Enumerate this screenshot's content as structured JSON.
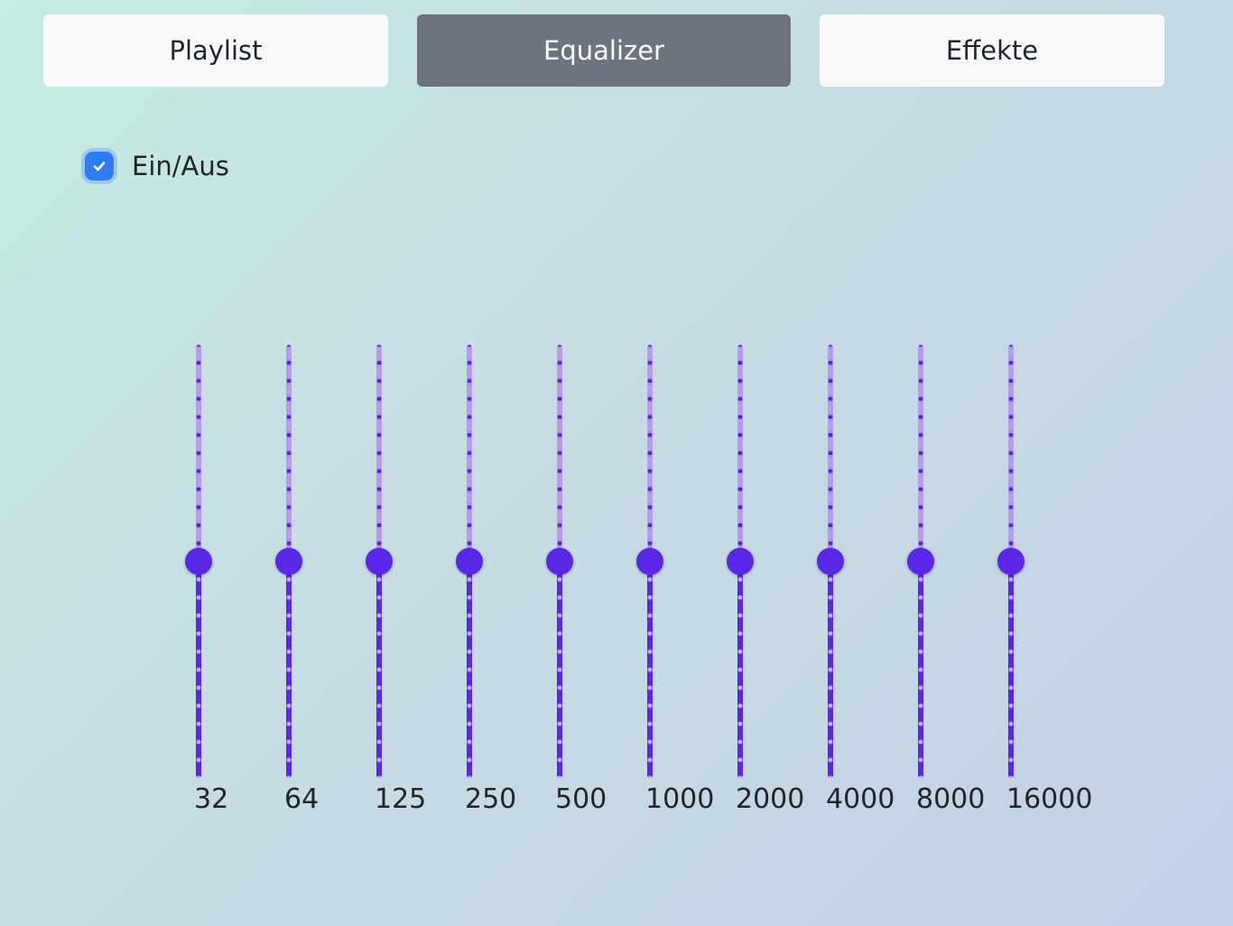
{
  "tabs": [
    {
      "label": "Playlist",
      "active": false
    },
    {
      "label": "Equalizer",
      "active": true
    },
    {
      "label": "Effekte",
      "active": false
    }
  ],
  "equalizer": {
    "enabled": true,
    "toggle_label": "Ein/Aus",
    "range": {
      "min": -12,
      "max": 12
    },
    "bands": [
      {
        "label": "32",
        "value": 0
      },
      {
        "label": "64",
        "value": 0
      },
      {
        "label": "125",
        "value": 0
      },
      {
        "label": "250",
        "value": 0
      },
      {
        "label": "500",
        "value": 0
      },
      {
        "label": "1000",
        "value": 0
      },
      {
        "label": "2000",
        "value": 0
      },
      {
        "label": "4000",
        "value": 0
      },
      {
        "label": "8000",
        "value": 0
      },
      {
        "label": "16000",
        "value": 0
      }
    ]
  },
  "colors": {
    "accent": "#5a27e6",
    "track_upper": "#b89bef",
    "checkbox": "#2f7cf6",
    "tab_active": "#6c757d",
    "tab_inactive": "#f8f9fa"
  }
}
